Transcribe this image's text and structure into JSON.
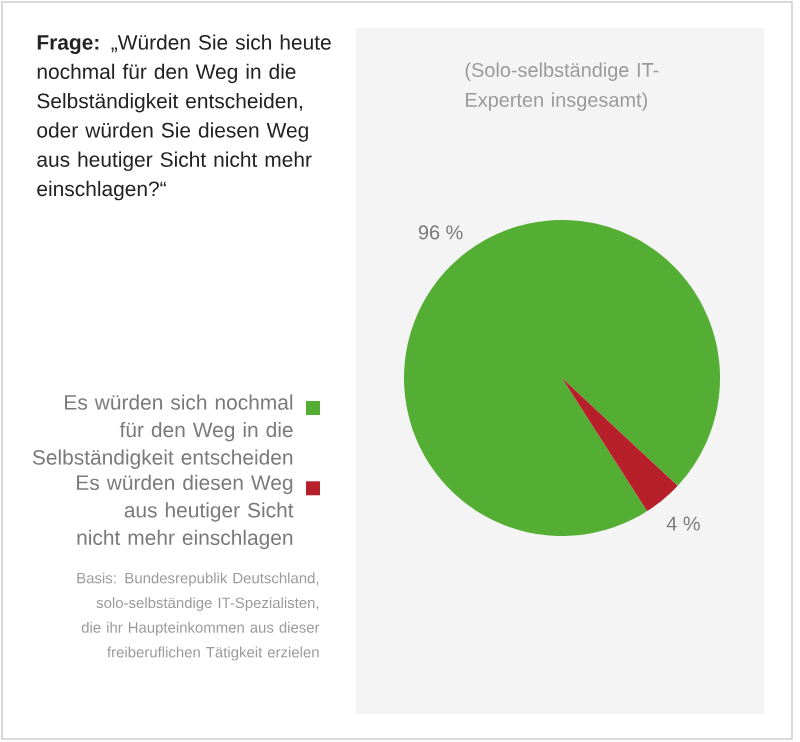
{
  "chart_data": {
    "type": "pie",
    "title": "**Frage:** „Würden Sie sich heute nochmal für den Weg in die Selbständigkeit entscheiden, oder würden Sie diesen Weg aus heutiger Sicht nicht mehr einschlagen?“",
    "subtitle": "(Solo-selbständige IT-Experten insgesamt)",
    "categories": [
      "Es würden sich nochmal für den Weg in die Selbständigkeit entscheiden",
      "Es würden diesen Weg aus heutiger Sicht nicht mehr einschlagen"
    ],
    "values": [
      96,
      4
    ],
    "colors": [
      "#54ae34",
      "#b71f2a"
    ],
    "value_labels": [
      "96 %",
      "4 %"
    ],
    "legend": "left",
    "annotations": [
      "Basis: Bundesrepublik Deutschland, solo-selbständige IT-Spezialisten, die ihr Haupteinkommen aus dieser freiberuflichen Tätigkeit erzielen"
    ]
  }
}
